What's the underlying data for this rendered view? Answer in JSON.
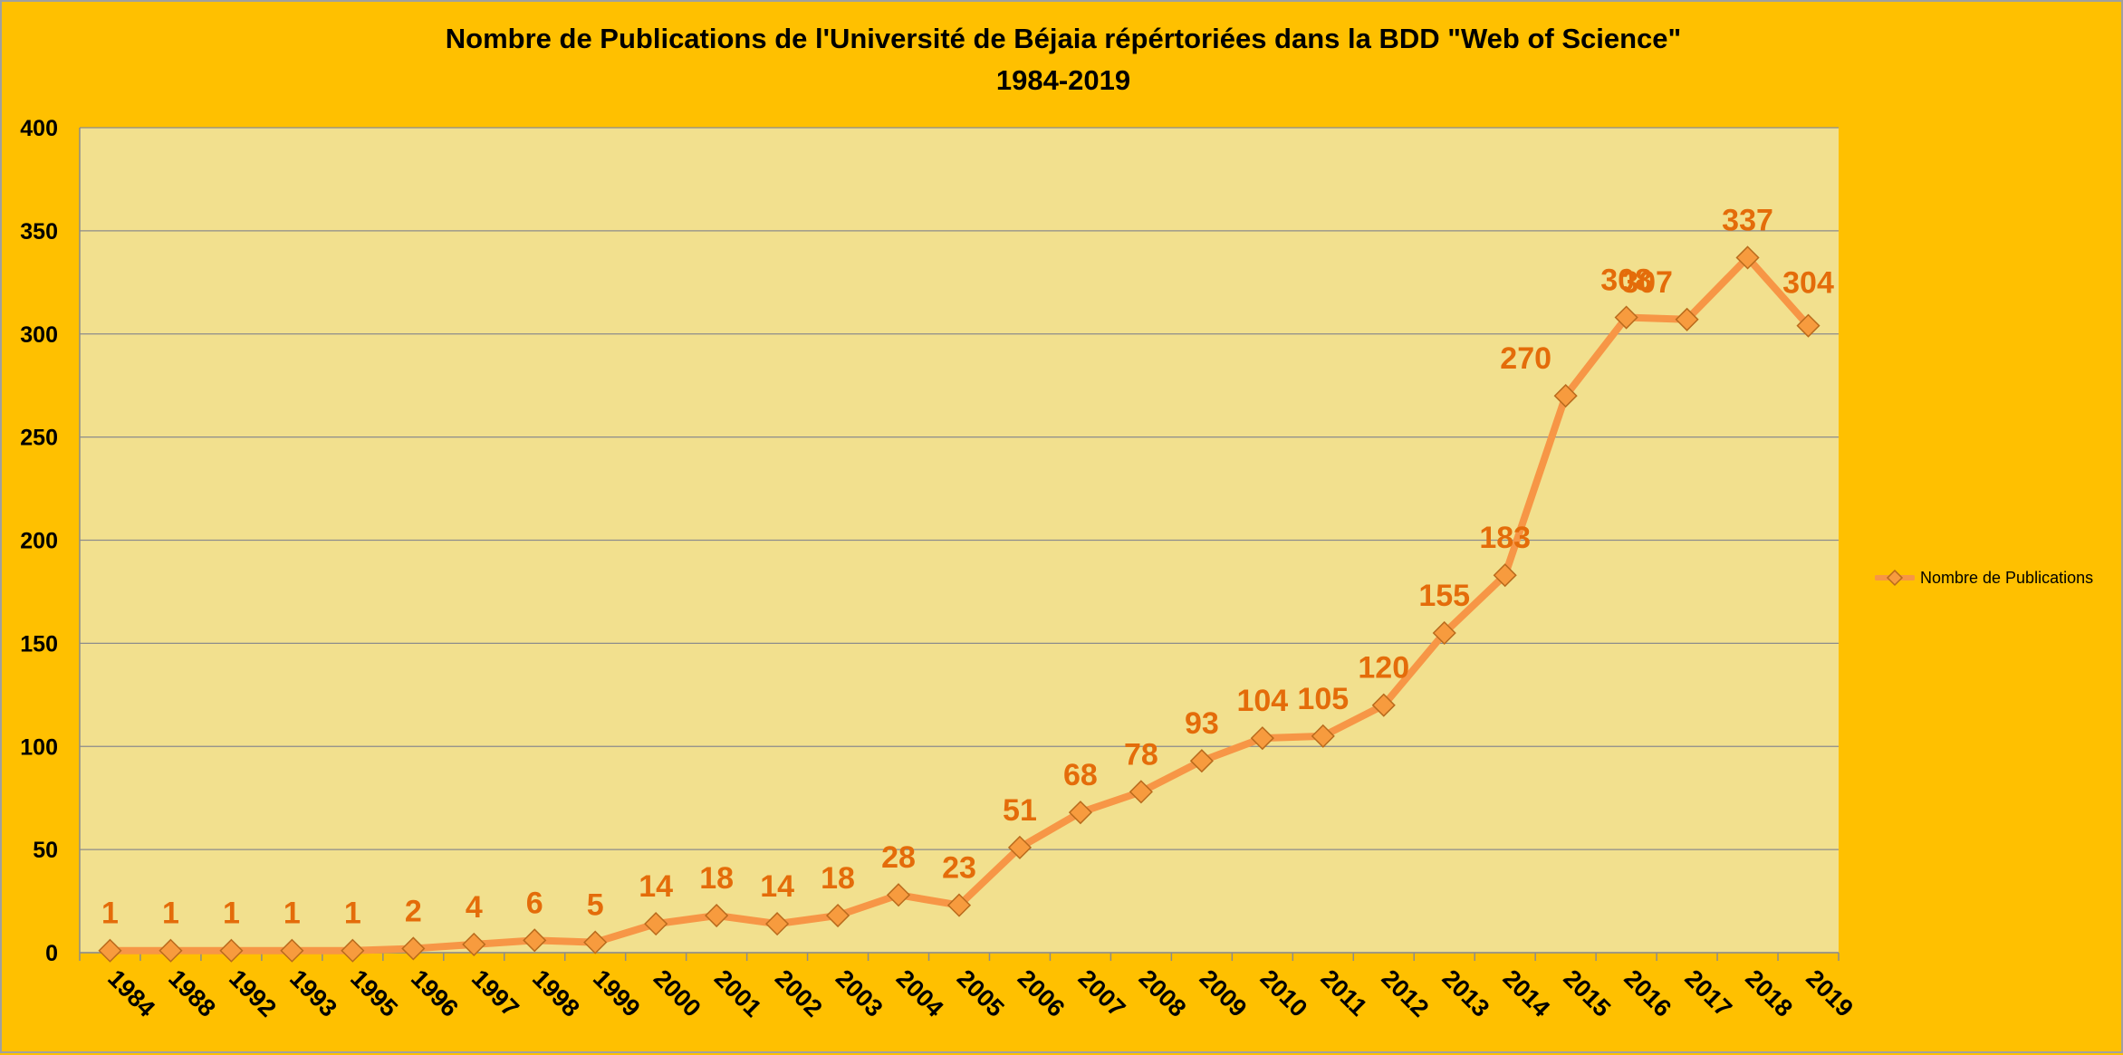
{
  "chart_data": {
    "type": "line",
    "title": "Nombre de Publications de l'Université de Béjaia répértoriées dans la BDD \"Web of Science\"",
    "subtitle": "1984-2019",
    "categories": [
      "1984",
      "1988",
      "1992",
      "1993",
      "1995",
      "1996",
      "1997",
      "1998",
      "1999",
      "2000",
      "2001",
      "2002",
      "2003",
      "2004",
      "2005",
      "2006",
      "2007",
      "2008",
      "2009",
      "2010",
      "2011",
      "2012",
      "2013",
      "2014",
      "2015",
      "2016",
      "2017",
      "2018",
      "2019"
    ],
    "series": [
      {
        "name": "Nombre de Publications",
        "values": [
          1,
          1,
          1,
          1,
          1,
          2,
          4,
          6,
          5,
          14,
          18,
          14,
          18,
          28,
          23,
          51,
          68,
          78,
          93,
          104,
          105,
          120,
          155,
          183,
          270,
          308,
          307,
          337,
          304
        ]
      }
    ],
    "ylim": [
      0,
      400
    ],
    "yticks": [
      0,
      50,
      100,
      150,
      200,
      250,
      300,
      350,
      400
    ],
    "grid": true,
    "legend_position": "right",
    "data_labels": true,
    "colors": {
      "background": "#FFC000",
      "plot_area": "#F2E08E",
      "line": "#F79646",
      "marker_fill": "#F79B3E",
      "marker_stroke": "#B96A1C",
      "data_label": "#E46C0A",
      "grid": "#8C8C8C"
    },
    "marker": "diamond"
  }
}
